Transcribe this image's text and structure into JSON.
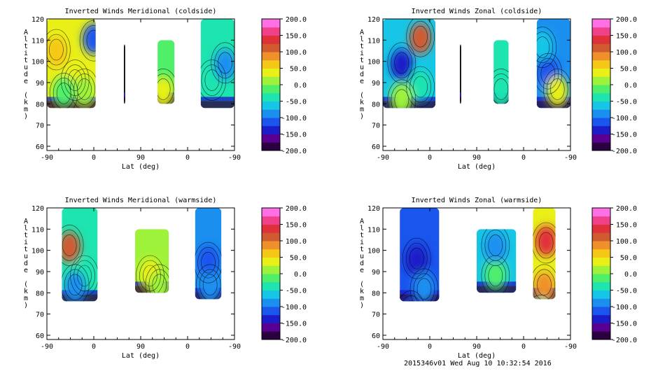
{
  "footer": "2015346v01 Wed Aug 10 10:32:54 2016",
  "colorbar": {
    "ticks": [
      "200.0",
      "150.0",
      "100.0",
      "50.0",
      "0.0",
      "-50.0",
      "-100.0",
      "-150.0",
      "-200.0"
    ],
    "range": [
      -200,
      200
    ],
    "colors": [
      "#2a0040",
      "#5a0090",
      "#1c1cc8",
      "#1a55ee",
      "#1b8ff0",
      "#17c6e6",
      "#1ee4b0",
      "#4fef6a",
      "#9ef23a",
      "#e8f018",
      "#f5c818",
      "#f0902a",
      "#d05a30",
      "#e0303a",
      "#f0408a",
      "#ff70e6"
    ]
  },
  "chart_data": [
    {
      "type": "heatmap",
      "title": "Inverted Winds Meridional (coldside)",
      "xlabel": "Lat (deg)",
      "ylabel": "Altitude (km)",
      "xticks": [
        "-90",
        "0",
        "90",
        "0",
        "-90"
      ],
      "yticks": [
        "60",
        "70",
        "80",
        "90",
        "100",
        "110",
        "120"
      ],
      "ylim": [
        58,
        120
      ],
      "regions": [
        {
          "lat_range": [
            "-90",
            "0"
          ],
          "alt_range": [
            78,
            120
          ],
          "mean_wind": 25
        },
        {
          "lat_range": [
            "45",
            "45"
          ],
          "alt_range": [
            80,
            108
          ],
          "mean_wind": 0
        },
        {
          "lat_range": [
            "130",
            "155"
          ],
          "alt_range": [
            80,
            110
          ],
          "mean_wind": -10
        },
        {
          "lat_range": [
            "-15",
            "-90"
          ],
          "alt_range": [
            78,
            120
          ],
          "mean_wind": -40
        }
      ]
    },
    {
      "type": "heatmap",
      "title": "Inverted Winds Zonal (coldside)",
      "xlabel": "Lat (deg)",
      "ylabel": "Altitude (km)",
      "xticks": [
        "-90",
        "0",
        "90",
        "0",
        "-90"
      ],
      "yticks": [
        "60",
        "70",
        "80",
        "90",
        "100",
        "110",
        "120"
      ],
      "ylim": [
        58,
        120
      ],
      "regions": [
        {
          "lat_range": [
            "-90",
            "0"
          ],
          "alt_range": [
            78,
            120
          ],
          "mean_wind": -60
        },
        {
          "lat_range": [
            "45",
            "45"
          ],
          "alt_range": [
            80,
            108
          ],
          "mean_wind": 0
        },
        {
          "lat_range": [
            "130",
            "155"
          ],
          "alt_range": [
            80,
            110
          ],
          "mean_wind": -30
        },
        {
          "lat_range": [
            "-20",
            "-90"
          ],
          "alt_range": [
            78,
            120
          ],
          "mean_wind": -90
        }
      ]
    },
    {
      "type": "heatmap",
      "title": "Inverted Winds Meridional (warmside)",
      "xlabel": "Lat (deg)",
      "ylabel": "Altitude (km)",
      "xticks": [
        "-90",
        "0",
        "90",
        "0",
        "-90"
      ],
      "yticks": [
        "60",
        "70",
        "80",
        "90",
        "100",
        "110",
        "120"
      ],
      "ylim": [
        58,
        120
      ],
      "regions": [
        {
          "lat_range": [
            "-80",
            "10"
          ],
          "alt_range": [
            76,
            120
          ],
          "mean_wind": -30
        },
        {
          "lat_range": [
            "90",
            "165"
          ],
          "alt_range": [
            80,
            110
          ],
          "mean_wind": 10
        },
        {
          "lat_range": [
            "-10",
            "-60"
          ],
          "alt_range": [
            77,
            120
          ],
          "mean_wind": -90
        }
      ]
    },
    {
      "type": "heatmap",
      "title": "Inverted Winds Zonal (warmside)",
      "xlabel": "Lat (deg)",
      "ylabel": "Altitude (km)",
      "xticks": [
        "-90",
        "0",
        "90",
        "0",
        "-90"
      ],
      "yticks": [
        "60",
        "70",
        "80",
        "90",
        "100",
        "110",
        "120"
      ],
      "ylim": [
        58,
        120
      ],
      "regions": [
        {
          "lat_range": [
            "-55",
            "10"
          ],
          "alt_range": [
            76,
            120
          ],
          "mean_wind": -110
        },
        {
          "lat_range": [
            "90",
            "150"
          ],
          "alt_range": [
            80,
            110
          ],
          "mean_wind": -60
        },
        {
          "lat_range": [
            "20",
            "-60"
          ],
          "alt_range": [
            77,
            120
          ],
          "mean_wind": 40
        }
      ]
    }
  ]
}
